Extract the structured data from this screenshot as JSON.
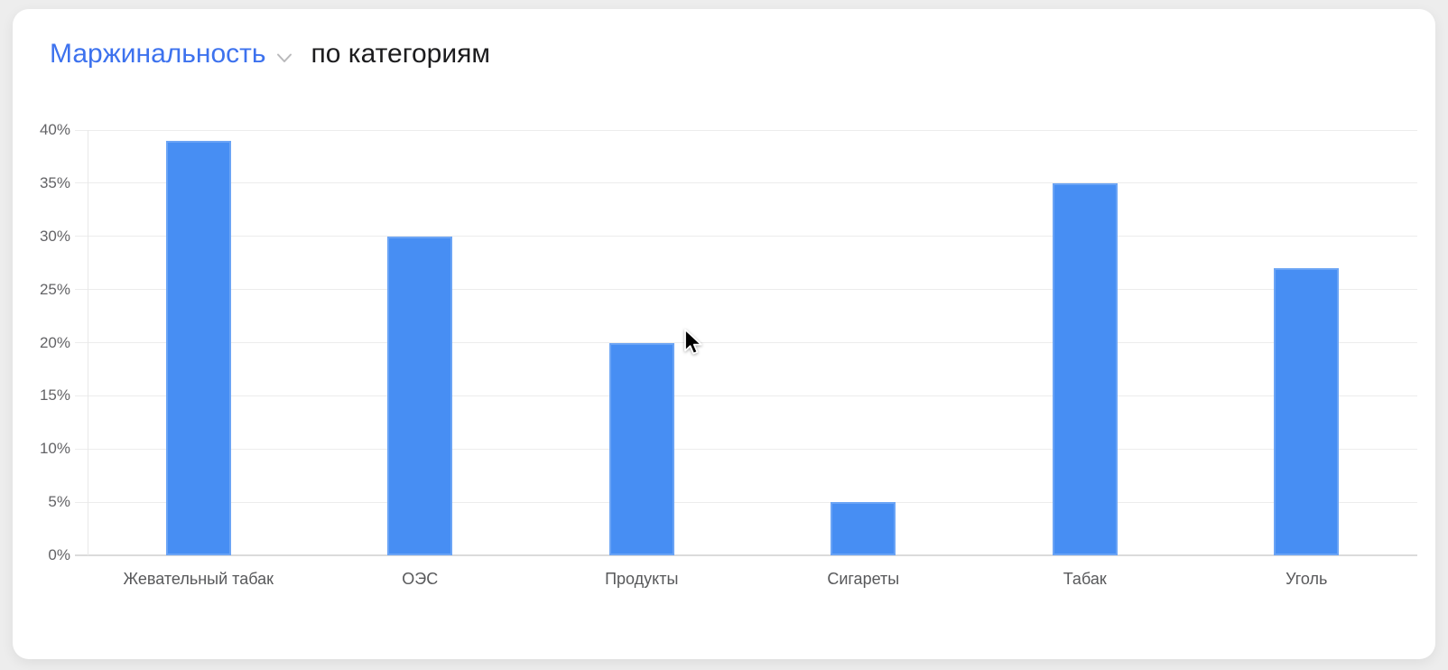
{
  "header": {
    "metric_selector": {
      "label": "Маржинальность",
      "color": "#3d72ee"
    },
    "title_suffix": "по категориям"
  },
  "chart_data": {
    "type": "bar",
    "title": "Маржинальность по категориям",
    "categories": [
      "Жевательный табак",
      "ОЭС",
      "Продукты",
      "Сигареты",
      "Табак",
      "Уголь"
    ],
    "values": [
      39,
      30,
      20,
      5,
      35,
      27
    ],
    "value_unit": "%",
    "xlabel": "",
    "ylabel": "",
    "ylim": [
      0,
      40
    ],
    "ytick_step": 5,
    "ytick_labels": [
      "0%",
      "5%",
      "10%",
      "15%",
      "20%",
      "25%",
      "30%",
      "35%",
      "40%"
    ],
    "grid": true,
    "legend": "none",
    "bar_color": "#478ef3"
  },
  "cursor": {
    "visible": true,
    "type": "arrow"
  }
}
